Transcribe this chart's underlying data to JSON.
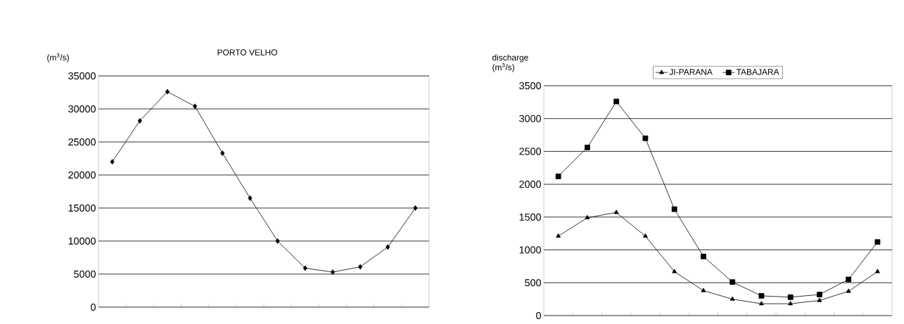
{
  "chart_data": [
    {
      "type": "line",
      "title": "PORTO VELHO",
      "ylabel": "(m$^{3}$/s)",
      "categories": [
        null,
        null,
        null,
        null,
        null,
        null,
        null,
        null,
        null,
        null,
        null,
        null
      ],
      "series": [
        {
          "color": "#000000",
          "marker": "diamond",
          "values": [
            22000,
            28200,
            32600,
            30400,
            23300,
            16500,
            10000,
            5900,
            5300,
            6100,
            9100,
            15000
          ]
        }
      ],
      "ylim": [
        0,
        35000
      ],
      "yticks": [
        0,
        5000,
        10000,
        15000,
        20000,
        25000,
        30000,
        35000
      ],
      "grid": "y",
      "tick_labels": "y"
    },
    {
      "type": "line",
      "ylabel": "discharge (m$^{3}$/s)",
      "categories": [
        null,
        null,
        null,
        null,
        null,
        null,
        null,
        null,
        null,
        null,
        null,
        null
      ],
      "series": [
        {
          "name": "JI-PARANA",
          "color": "#000000",
          "marker": "triangle",
          "values": [
            1210,
            1490,
            1570,
            1210,
            670,
            380,
            250,
            180,
            180,
            230,
            370,
            670
          ]
        },
        {
          "name": "TABAJARA",
          "color": "#000000",
          "marker": "square",
          "values": [
            2120,
            2560,
            3260,
            2700,
            1620,
            900,
            510,
            300,
            280,
            320,
            550,
            1120
          ]
        }
      ],
      "ylim": [
        0,
        3500
      ],
      "yticks": [
        0,
        500,
        1000,
        1500,
        2000,
        2500,
        3000,
        3500
      ],
      "grid": "y",
      "tick_labels": "y",
      "legend": "top"
    }
  ]
}
